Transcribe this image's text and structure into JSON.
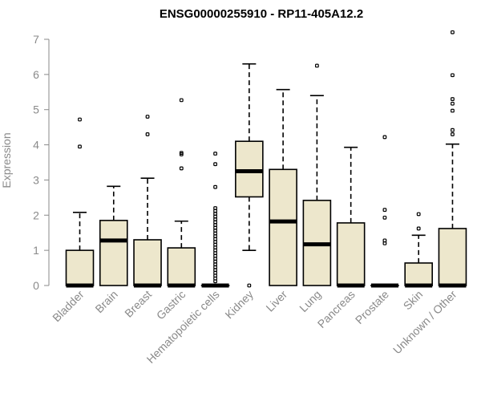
{
  "chart_data": {
    "type": "boxplot",
    "title": "ENSG00000255910 - RP11-405A12.2",
    "ylabel": "Expression",
    "ylim": [
      0,
      7
    ],
    "yticks": [
      0,
      1,
      2,
      3,
      4,
      5,
      6,
      7
    ],
    "box_color": "#ede7cc",
    "categories": [
      "Bladder",
      "Brain",
      "Breast",
      "Gastric",
      "Hematopoietic cells",
      "Kidney",
      "Liver",
      "Lung",
      "Pancreas",
      "Prostate",
      "Skin",
      "Unknown / Other"
    ],
    "boxes": [
      {
        "min": 0,
        "q1": 0,
        "median": 0,
        "q3": 1.0,
        "max": 2.08,
        "outliers": [
          3.95,
          4.72
        ]
      },
      {
        "min": 0,
        "q1": 0,
        "median": 1.28,
        "q3": 1.85,
        "max": 2.82,
        "outliers": []
      },
      {
        "min": 0,
        "q1": 0,
        "median": 0,
        "q3": 1.3,
        "max": 3.05,
        "outliers": [
          4.3,
          4.8
        ]
      },
      {
        "min": 0,
        "q1": 0,
        "median": 0,
        "q3": 1.07,
        "max": 1.83,
        "outliers": [
          3.33,
          3.73,
          3.77,
          5.27
        ]
      },
      {
        "min": 0,
        "q1": 0,
        "median": 0,
        "q3": 0,
        "max": 0,
        "outliers": [
          0.12,
          0.2,
          0.28,
          0.36,
          0.44,
          0.52,
          0.6,
          0.68,
          0.76,
          0.84,
          0.92,
          1.0,
          1.08,
          1.16,
          1.24,
          1.32,
          1.4,
          1.48,
          1.56,
          1.64,
          1.72,
          1.8,
          1.88,
          1.96,
          2.04,
          2.12,
          2.2,
          2.8,
          3.45,
          3.75
        ]
      },
      {
        "min": 1.0,
        "q1": 2.52,
        "median": 3.25,
        "q3": 4.1,
        "max": 6.3,
        "outliers": [
          0
        ]
      },
      {
        "min": 0,
        "q1": 0,
        "median": 1.82,
        "q3": 3.3,
        "max": 5.57,
        "outliers": []
      },
      {
        "min": 0,
        "q1": 0,
        "median": 1.17,
        "q3": 2.42,
        "max": 5.4,
        "outliers": [
          6.25
        ]
      },
      {
        "min": 0,
        "q1": 0,
        "median": 0,
        "q3": 1.78,
        "max": 3.93,
        "outliers": []
      },
      {
        "min": 0,
        "q1": 0,
        "median": 0,
        "q3": 0,
        "max": 0,
        "outliers": [
          1.2,
          1.28,
          1.93,
          2.15,
          4.22
        ]
      },
      {
        "min": 0,
        "q1": 0,
        "median": 0,
        "q3": 0.64,
        "max": 1.43,
        "outliers": [
          1.62,
          2.03
        ]
      },
      {
        "min": 0,
        "q1": 0,
        "median": 0,
        "q3": 1.62,
        "max": 4.02,
        "outliers": [
          4.3,
          4.42,
          4.97,
          5.17,
          5.3,
          5.98,
          7.2
        ]
      }
    ]
  }
}
